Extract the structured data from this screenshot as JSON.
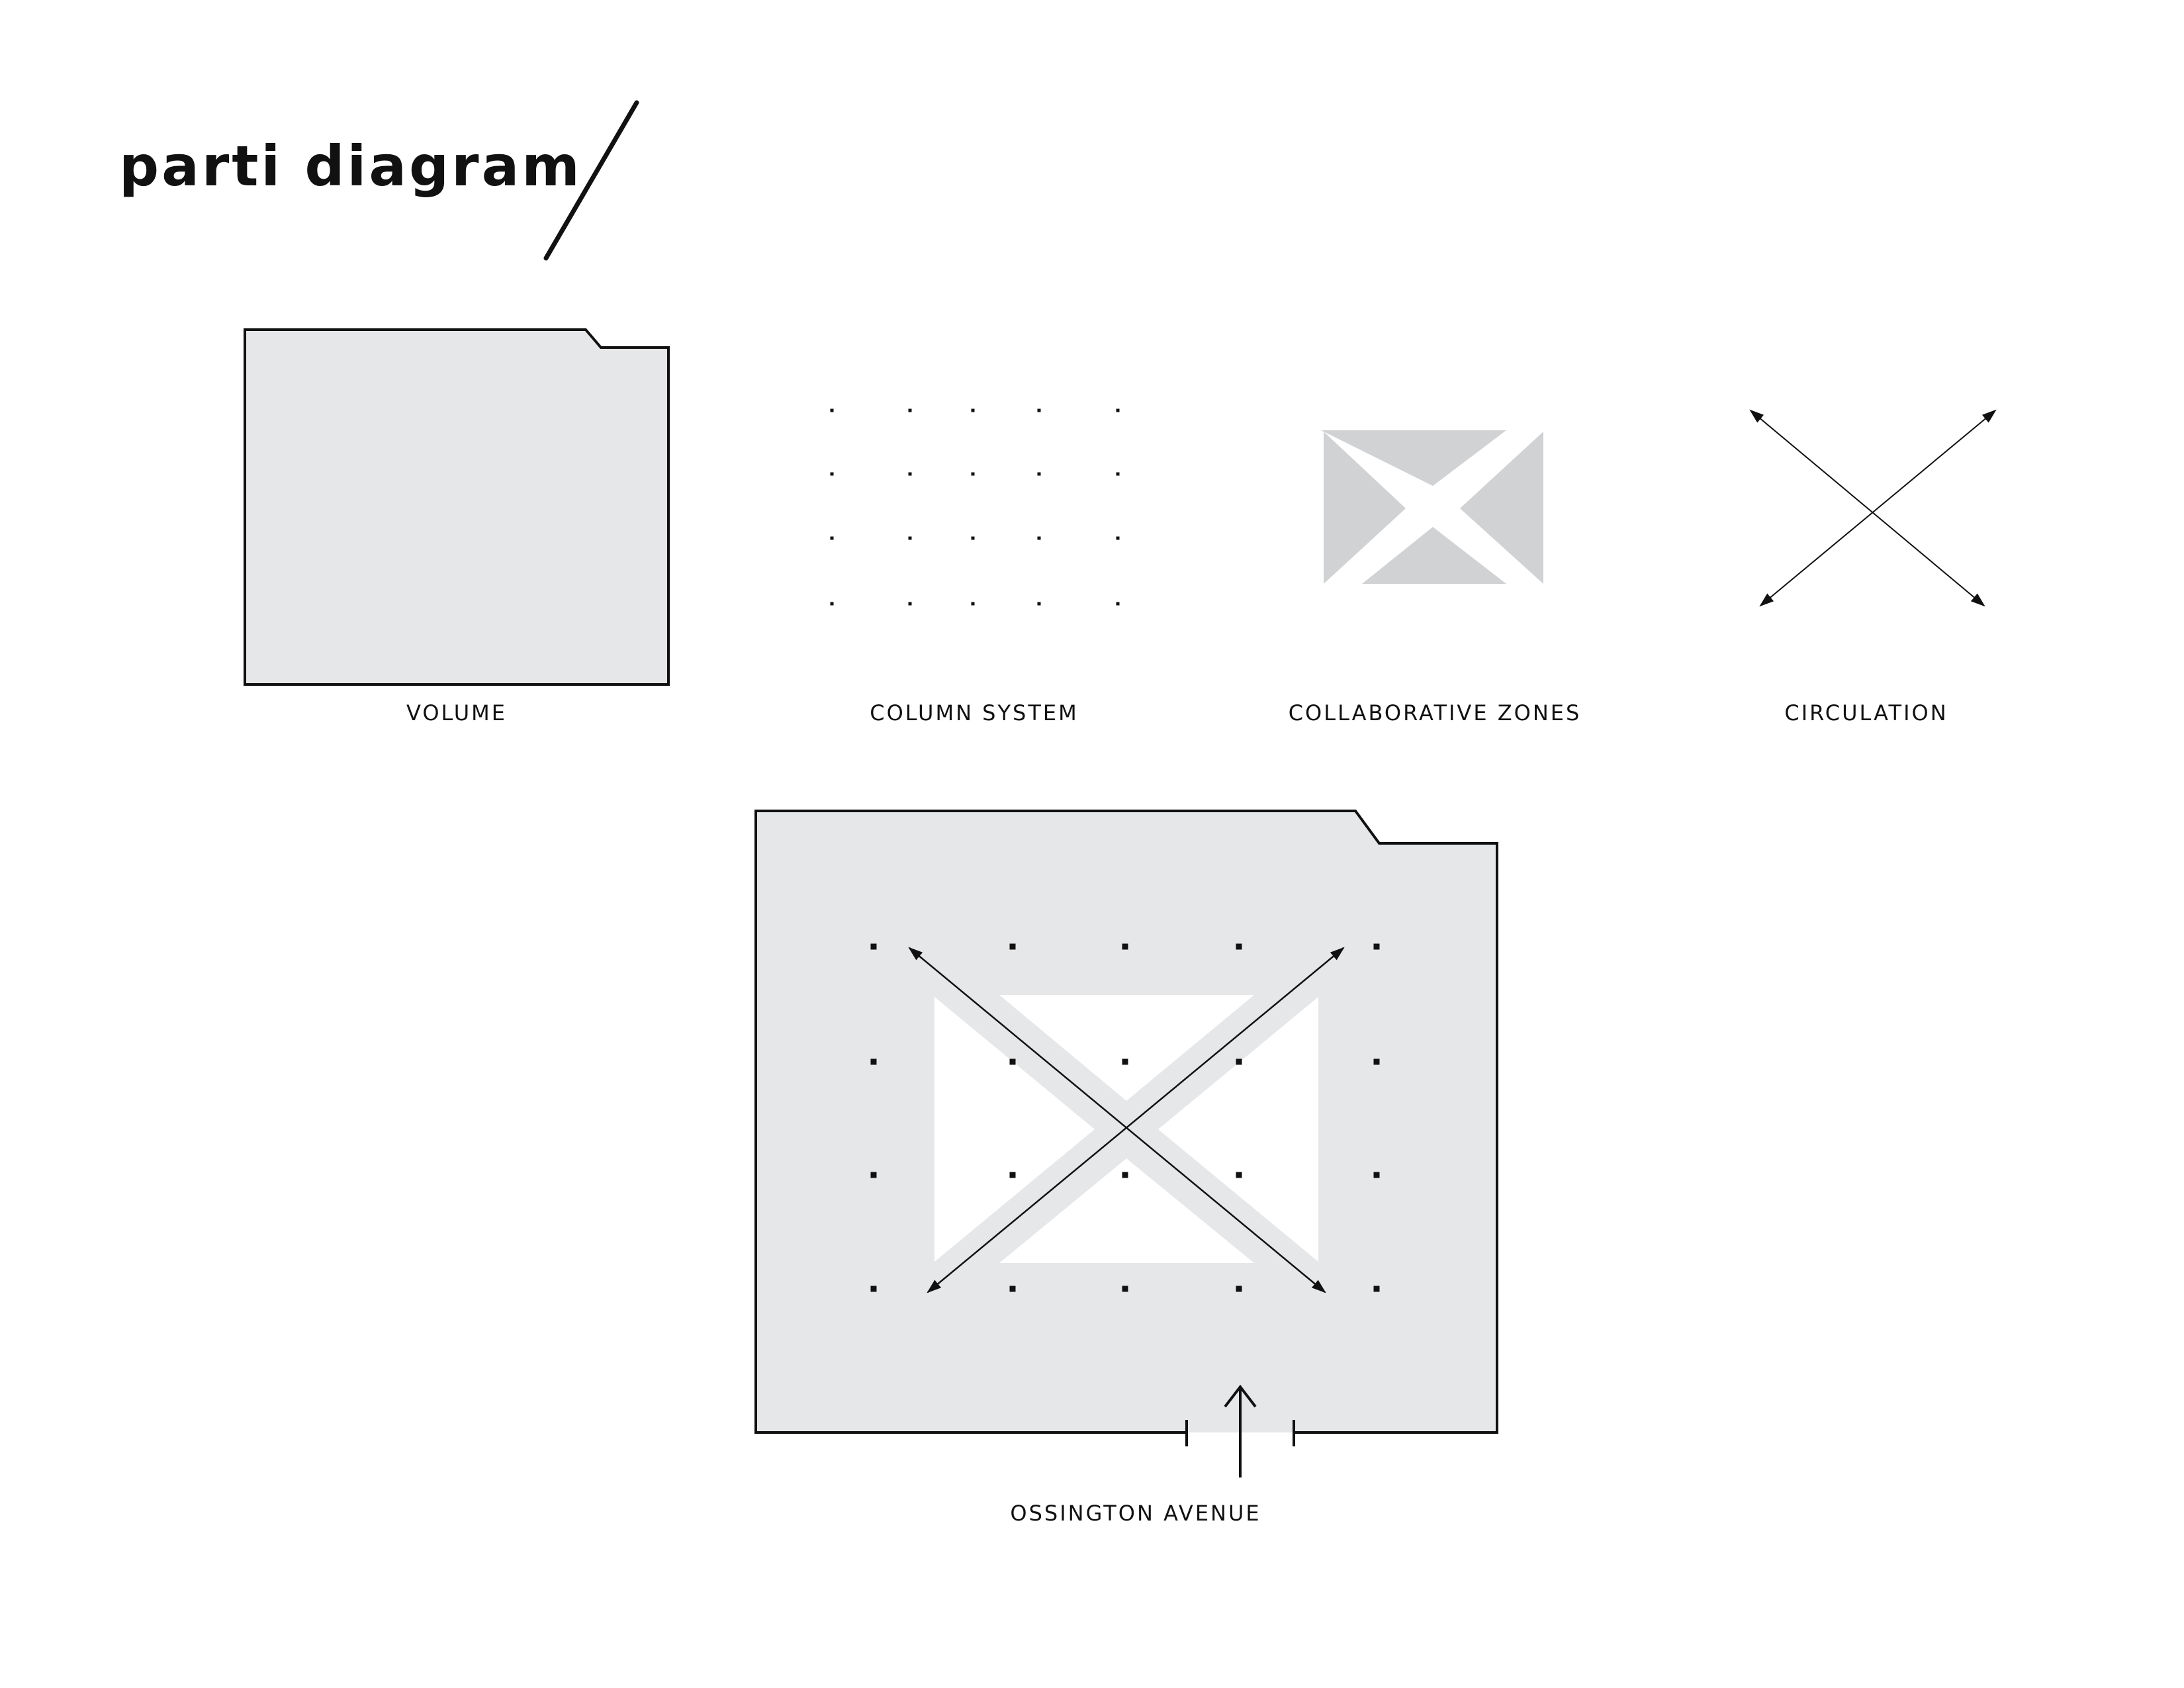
{
  "title": "parti diagram",
  "captions": {
    "volume": "VOLUME",
    "column_system": "COLUMN SYSTEM",
    "collaborative_zones": "COLLABORATIVE ZONES",
    "circulation": "CIRCULATION",
    "street": "OSSINGTON AVENUE"
  },
  "colors": {
    "ink": "#111111",
    "light_fill": "#e6e7e9",
    "zone_fill": "#d1d2d4",
    "background": "#ffffff"
  }
}
